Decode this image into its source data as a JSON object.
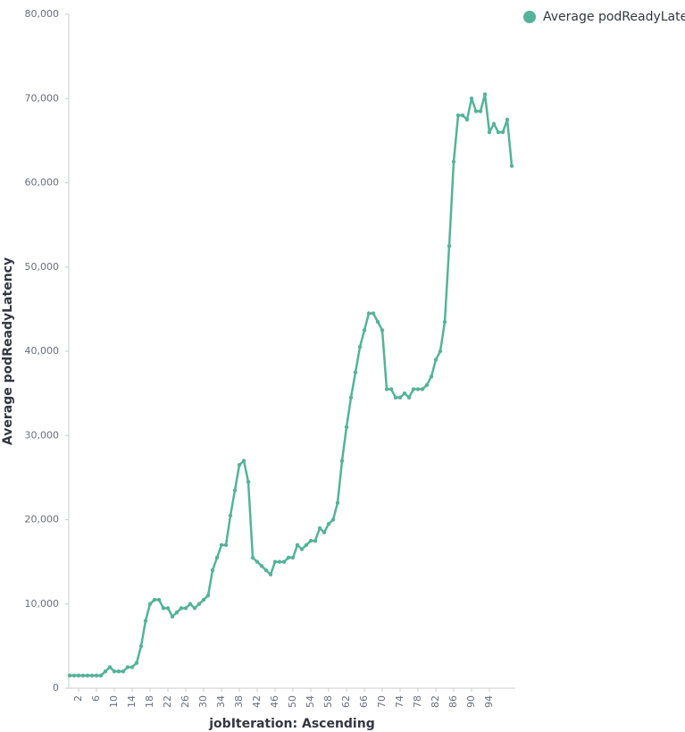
{
  "chart_data": {
    "type": "line",
    "x_label": "jobIteration: Ascending",
    "y_label": "Average podReadyLatency",
    "x": [
      0,
      1,
      2,
      3,
      4,
      5,
      6,
      7,
      8,
      9,
      10,
      11,
      12,
      13,
      14,
      15,
      16,
      17,
      18,
      19,
      20,
      21,
      22,
      23,
      24,
      25,
      26,
      27,
      28,
      29,
      30,
      31,
      32,
      33,
      34,
      35,
      36,
      37,
      38,
      39,
      40,
      41,
      42,
      43,
      44,
      45,
      46,
      47,
      48,
      49,
      50,
      51,
      52,
      53,
      54,
      55,
      56,
      57,
      58,
      59,
      60,
      61,
      62,
      63,
      64,
      65,
      66,
      67,
      68,
      69,
      70,
      71,
      72,
      73,
      74,
      75,
      76,
      77,
      78,
      79,
      80,
      81,
      82,
      83,
      84,
      85,
      86,
      87,
      88,
      89,
      90,
      91,
      92,
      93,
      94,
      95,
      96,
      97,
      98,
      99
    ],
    "series": [
      {
        "name": "Average podReadyLatency",
        "color": "#54b399",
        "values": [
          1500,
          1500,
          1500,
          1500,
          1500,
          1500,
          1500,
          1500,
          2000,
          2500,
          2000,
          2000,
          2000,
          2500,
          2500,
          3000,
          5000,
          8000,
          10000,
          10500,
          10500,
          9500,
          9500,
          8500,
          9000,
          9500,
          9500,
          10000,
          9500,
          10000,
          10500,
          11000,
          14000,
          15500,
          17000,
          17000,
          20500,
          23500,
          26500,
          27000,
          24500,
          15500,
          15000,
          14500,
          14000,
          13500,
          15000,
          15000,
          15000,
          15500,
          15500,
          17000,
          16500,
          17000,
          17500,
          17500,
          19000,
          18500,
          19500,
          20000,
          22000,
          27000,
          31000,
          34500,
          37500,
          40500,
          42500,
          44500,
          44500,
          43500,
          42500,
          35500,
          35500,
          34500,
          34500,
          35000,
          34500,
          35500,
          35500,
          35500,
          36000,
          37000,
          39000,
          40000,
          43500,
          52500,
          62500,
          68000,
          68000,
          67500,
          70000,
          68500,
          68500,
          70500,
          66000,
          67000,
          66000,
          66000,
          67500,
          62000
        ]
      }
    ],
    "xlim": [
      0,
      99
    ],
    "xticks": [
      2,
      6,
      10,
      14,
      18,
      22,
      26,
      30,
      34,
      38,
      42,
      46,
      50,
      54,
      58,
      62,
      66,
      70,
      74,
      78,
      82,
      86,
      90,
      94
    ],
    "ylim": [
      0,
      80000
    ],
    "yticks": [
      0,
      {
        "value": 10000,
        "label": "10,000"
      },
      {
        "value": 20000,
        "label": "20,000"
      },
      {
        "value": 30000,
        "label": "30,000"
      },
      {
        "value": 40000,
        "label": "40,000"
      },
      {
        "value": 50000,
        "label": "50,000"
      },
      {
        "value": 60000,
        "label": "60,000"
      },
      {
        "value": 70000,
        "label": "70,000"
      },
      {
        "value": 80000,
        "label": "80,000"
      }
    ],
    "grid": false,
    "legend": "top-right"
  }
}
